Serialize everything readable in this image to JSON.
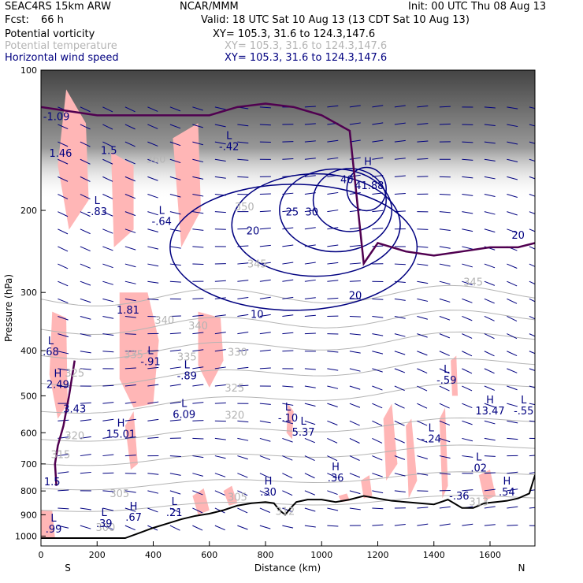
{
  "header": {
    "model": "SEAC4RS 15km ARW",
    "org": "NCAR/MMM",
    "init": "Init: 00 UTC Thu 08 Aug 13",
    "fcst_label": "Fcst:",
    "fcst_value": "66 h",
    "valid": "Valid: 18 UTC Sat 10 Aug 13 (13 CDT Sat 10 Aug 13)",
    "fields": [
      {
        "name": "Potential vorticity",
        "xy": "XY= 105.3, 31.6 to 124.3,147.6",
        "color": "#000000"
      },
      {
        "name": "Potential temperature",
        "xy": "XY= 105.3, 31.6 to 124.3,147.6",
        "color": "#b4b4b4"
      },
      {
        "name": "Horizontal wind speed",
        "xy": "XY= 105.3, 31.6 to 124.3,147.6",
        "color": "#000080"
      }
    ]
  },
  "chart_data": {
    "type": "cross-section",
    "xlabel": "Distance (km)",
    "ylabel": "Pressure (hPa)",
    "xlim": [
      0,
      1760
    ],
    "ylim": [
      1050,
      100
    ],
    "y_scale": "log",
    "x_ticks": [
      "0",
      "200",
      "400",
      "600",
      "800",
      "1000",
      "1200",
      "1400",
      "1600"
    ],
    "y_ticks": [
      "100",
      "200",
      "300",
      "400",
      "500",
      "600",
      "700",
      "800",
      "900",
      "1000"
    ],
    "x_end_labels": {
      "left": "S",
      "right": "N"
    },
    "colors": {
      "pv_fill": "#ffb6b6",
      "theta": "#b4b4b4",
      "wind": "#000080",
      "pv_2pvu": "#500050",
      "terrain": "#000000"
    },
    "theta_labels": [
      {
        "x": 120,
        "p": 455,
        "text": "325"
      },
      {
        "x": 410,
        "p": 158,
        "text": "360"
      },
      {
        "x": 725,
        "p": 200,
        "text": "350"
      },
      {
        "x": 770,
        "p": 265,
        "text": "345"
      },
      {
        "x": 560,
        "p": 360,
        "text": "340"
      },
      {
        "x": 520,
        "p": 420,
        "text": "335"
      },
      {
        "x": 700,
        "p": 410,
        "text": "330"
      },
      {
        "x": 690,
        "p": 490,
        "text": "325"
      },
      {
        "x": 690,
        "p": 560,
        "text": "320"
      },
      {
        "x": 440,
        "p": 350,
        "text": "340"
      },
      {
        "x": 330,
        "p": 415,
        "text": "335"
      },
      {
        "x": 120,
        "p": 620,
        "text": "320"
      },
      {
        "x": 70,
        "p": 680,
        "text": "315"
      },
      {
        "x": 280,
        "p": 825,
        "text": "305"
      },
      {
        "x": 700,
        "p": 840,
        "text": "305"
      },
      {
        "x": 870,
        "p": 900,
        "text": "312"
      },
      {
        "x": 1560,
        "p": 860,
        "text": "313"
      },
      {
        "x": 1540,
        "p": 290,
        "text": "345"
      },
      {
        "x": 230,
        "p": 975,
        "text": "300"
      }
    ],
    "wind_labels": [
      {
        "x": 755,
        "p": 225,
        "text": "20"
      },
      {
        "x": 895,
        "p": 205,
        "text": "25"
      },
      {
        "x": 965,
        "p": 205,
        "text": "30"
      },
      {
        "x": 1090,
        "p": 175,
        "text": "40"
      },
      {
        "x": 1170,
        "p": 180,
        "text": "41.88"
      },
      {
        "x": 770,
        "p": 340,
        "text": "10"
      },
      {
        "x": 1120,
        "p": 310,
        "text": "20"
      },
      {
        "x": 1700,
        "p": 230,
        "text": "20"
      }
    ],
    "hl_labels": [
      {
        "x": 55,
        "p": 125,
        "letter": "",
        "value": "-1.09"
      },
      {
        "x": 70,
        "p": 150,
        "letter": "",
        "value": "1.46"
      },
      {
        "x": 242,
        "p": 148,
        "letter": "",
        "value": "1.5"
      },
      {
        "x": 200,
        "p": 200,
        "letter": "L",
        "value": "-.83"
      },
      {
        "x": 430,
        "p": 210,
        "letter": "L",
        "value": "-.64"
      },
      {
        "x": 670,
        "p": 145,
        "letter": "L",
        "value": "-.42"
      },
      {
        "x": 1165,
        "p": 165,
        "letter": "H",
        "value": ""
      },
      {
        "x": 310,
        "p": 325,
        "letter": "",
        "value": "1.81"
      },
      {
        "x": 35,
        "p": 400,
        "letter": "L",
        "value": ".68"
      },
      {
        "x": 390,
        "p": 420,
        "letter": "L",
        "value": "-.91"
      },
      {
        "x": 520,
        "p": 450,
        "letter": "L",
        "value": "-.89"
      },
      {
        "x": 60,
        "p": 470,
        "letter": "H",
        "value": "2.49"
      },
      {
        "x": 120,
        "p": 530,
        "letter": "",
        "value": "3.43"
      },
      {
        "x": 510,
        "p": 545,
        "letter": "L",
        "value": "6.09"
      },
      {
        "x": 285,
        "p": 600,
        "letter": "H",
        "value": "15.01"
      },
      {
        "x": 880,
        "p": 555,
        "letter": "L",
        "value": "-.10"
      },
      {
        "x": 935,
        "p": 595,
        "letter": "L",
        "value": "5.37"
      },
      {
        "x": 1390,
        "p": 615,
        "letter": "L",
        "value": "-.24"
      },
      {
        "x": 1445,
        "p": 460,
        "letter": "L",
        "value": "-.59"
      },
      {
        "x": 1600,
        "p": 535,
        "letter": "H",
        "value": "13.47"
      },
      {
        "x": 1720,
        "p": 535,
        "letter": "L",
        "value": "-.55"
      },
      {
        "x": 1560,
        "p": 710,
        "letter": "L",
        "value": ".02"
      },
      {
        "x": 1050,
        "p": 745,
        "letter": "H",
        "value": ".36"
      },
      {
        "x": 810,
        "p": 800,
        "letter": "H",
        "value": ".30"
      },
      {
        "x": 1490,
        "p": 815,
        "letter": "",
        "value": "-.36"
      },
      {
        "x": 1660,
        "p": 800,
        "letter": "H",
        "value": ".54"
      },
      {
        "x": 45,
        "p": 960,
        "letter": "L",
        "value": ".99"
      },
      {
        "x": 225,
        "p": 935,
        "letter": "L",
        "value": ".39"
      },
      {
        "x": 330,
        "p": 905,
        "letter": "H",
        "value": ".67"
      },
      {
        "x": 475,
        "p": 885,
        "letter": "L",
        "value": ".21"
      },
      {
        "x": 40,
        "p": 760,
        "letter": "",
        "value": "1.5"
      }
    ]
  }
}
